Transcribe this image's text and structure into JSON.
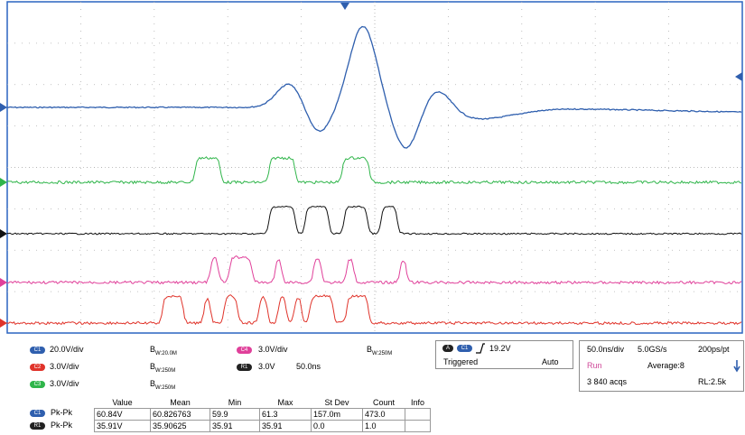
{
  "scope": {
    "grid_divisions": {
      "x": 10,
      "y": 8
    },
    "colors": {
      "background": "#ffffff",
      "grid": "#b0b0b0",
      "border": "#2a64c0",
      "ch1": "#2f5fae",
      "ch2": "#e0332a",
      "ch3": "#2fb54a",
      "ch4": "#e0409a",
      "ref1": "#111111"
    },
    "markers": [
      "ch1-ground-marker",
      "ch3-ground-marker",
      "ref1-ground-marker",
      "ch4-ground-marker",
      "ch2-ground-marker",
      "trigger-position-marker",
      "trigger-level-marker"
    ]
  },
  "channels": {
    "c1": {
      "chip": "C1",
      "scale": "20.0V/div",
      "bw": "W:20.0M"
    },
    "c2": {
      "chip": "C2",
      "scale": "3.0V/div",
      "bw": "W:250M"
    },
    "c3": {
      "chip": "C3",
      "scale": "3.0V/div",
      "bw": "W:250M"
    },
    "c4": {
      "chip": "C4",
      "scale": "3.0V/div",
      "bw": "W:250M"
    },
    "r1": {
      "chip": "R1",
      "scale": "3.0V",
      "time": "50.0ns"
    }
  },
  "trigger": {
    "source_chip": "C1",
    "level": "19.2V",
    "status": "Triggered",
    "mode": "Auto"
  },
  "acquisition": {
    "timebase": "50.0ns/div",
    "sample_rate": "5.0GS/s",
    "resolution": "200ps/pt",
    "state": "Run",
    "average": "Average:8",
    "acqs": "3 840 acqs",
    "record_length": "RL:2.5k"
  },
  "measurements": {
    "headers": [
      "Value",
      "Mean",
      "Min",
      "Max",
      "St Dev",
      "Count",
      "Info"
    ],
    "rows": [
      {
        "chip": "C1",
        "label": "Pk-Pk",
        "cells": [
          "60.84V",
          "60.826763",
          "59.9",
          "61.3",
          "157.0m",
          "473.0",
          ""
        ]
      },
      {
        "chip": "R1",
        "label": "Pk-Pk",
        "cells": [
          "35.91V",
          "35.90625",
          "35.91",
          "35.91",
          "0.0",
          "1.0",
          ""
        ]
      }
    ]
  }
}
